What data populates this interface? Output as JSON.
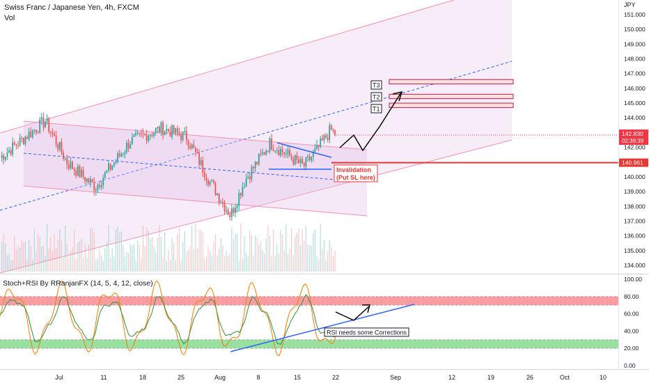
{
  "header": {
    "symbol_title": "Swiss Franc / Japanese Yen, 4h, FXCM",
    "volume_label": "Vol",
    "indicator_title": "Stoch+RSI By RRanjanFX (14, 5, 4, 12, close)"
  },
  "price_axis": {
    "currency": "JPY",
    "ticks": [
      "151.000",
      "150.000",
      "149.000",
      "148.000",
      "147.000",
      "146.000",
      "145.000",
      "144.000",
      "143.000",
      "142.000",
      "141.000",
      "140.000",
      "139.000",
      "138.000",
      "137.000",
      "136.000",
      "135.000",
      "134.000"
    ],
    "current_price": "142.830",
    "countdown": "02:39:39",
    "sl_price": "140.961",
    "ylim": [
      133.6,
      151.4
    ]
  },
  "indicator_axis": {
    "ticks": [
      "100.00",
      "80.00",
      "60.00",
      "40.00",
      "20.00",
      "0.00"
    ],
    "ylim": [
      -4,
      100
    ]
  },
  "time_axis": {
    "labels": [
      "Jul",
      "11",
      "18",
      "25",
      "Aug",
      "8",
      "15",
      "22",
      "Sep",
      "12",
      "19",
      "26",
      "Oct",
      "10"
    ]
  },
  "annotations": {
    "t1": "T1",
    "t2": "T2",
    "t3": "T3",
    "invalidation_line1": "Invalidation",
    "invalidation_line2": "(Put SL here)",
    "rsi_note": "RSI needs some Corrections"
  },
  "colors": {
    "up": "#26a69a",
    "down": "#ef5350",
    "channel": "#f48fb1",
    "channel_fill": "#e1bee7",
    "trendline": "#2962ff",
    "sl_line": "#e53935",
    "overbought": "#f77c80",
    "oversold": "#7fd88a",
    "stoch": "#f57c00",
    "rsi": "#388e3c",
    "price_label": "#f23645"
  },
  "chart_data": [
    {
      "type": "candlestick",
      "title": "Swiss Franc / Japanese Yen, 4h, FXCM",
      "series": [
        {
          "name": "CHFJPY",
          "key_closes": [
            {
              "date": "Jun 27",
              "close": 141.3
            },
            {
              "date": "Jul 3",
              "close": 143.8
            },
            {
              "date": "Jul 7",
              "close": 141.0
            },
            {
              "date": "Jul 12",
              "close": 139.3
            },
            {
              "date": "Jul 19",
              "close": 142.4
            },
            {
              "date": "Jul 21",
              "close": 143.3
            },
            {
              "date": "Jul 26",
              "close": 142.7
            },
            {
              "date": "Jul 29",
              "close": 139.8
            },
            {
              "date": "Aug 2",
              "close": 137.4
            },
            {
              "date": "Aug 5",
              "close": 139.8
            },
            {
              "date": "Aug 9",
              "close": 142.3
            },
            {
              "date": "Aug 13",
              "close": 140.7
            },
            {
              "date": "Aug 16",
              "close": 141.8
            },
            {
              "date": "Aug 19",
              "close": 143.2
            },
            {
              "date": "Aug 20",
              "close": 142.83
            }
          ]
        }
      ],
      "levels": {
        "current": 142.83,
        "stop_loss": 140.961
      },
      "targets": [
        {
          "name": "T1",
          "low": 144.7,
          "high": 145.0
        },
        {
          "name": "T2",
          "low": 145.3,
          "high": 145.6
        },
        {
          "name": "T3",
          "low": 146.3,
          "high": 146.6
        }
      ],
      "ylim": [
        133.6,
        151.4
      ]
    },
    {
      "type": "line",
      "title": "Stoch+RSI By RRanjanFX (14, 5, 4, 12, close)",
      "bands": [
        {
          "from": 70,
          "to": 80
        },
        {
          "from": 20,
          "to": 30
        }
      ],
      "ylim": [
        -4,
        100
      ]
    }
  ]
}
